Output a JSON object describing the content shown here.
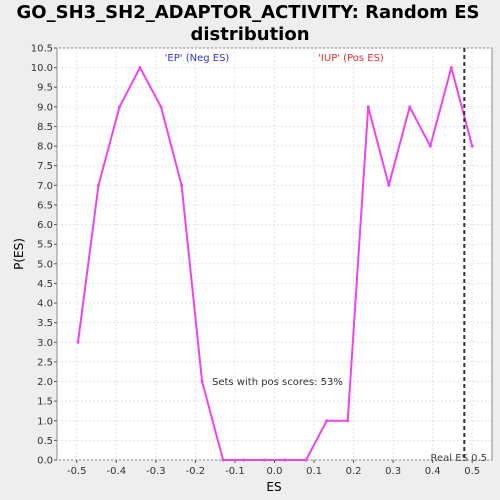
{
  "chart_data": {
    "type": "line",
    "title_line1": "GO_SH3_SH2_ADAPTOR_ACTIVITY: Random ES",
    "title_line2": "distribution",
    "xlabel": "ES",
    "ylabel": "P(ES)",
    "xlim": [
      -0.55,
      0.55
    ],
    "ylim": [
      0,
      10.5
    ],
    "x_ticks": [
      "-0.5",
      "-0.4",
      "-0.3",
      "-0.2",
      "-0.1",
      "0.0",
      "0.1",
      "0.2",
      "0.3",
      "0.4",
      "0.5"
    ],
    "y_ticks": [
      "0.0",
      "0.5",
      "1.0",
      "1.5",
      "2.0",
      "2.5",
      "3.0",
      "3.5",
      "4.0",
      "4.5",
      "5.0",
      "5.5",
      "6.0",
      "6.5",
      "7.0",
      "7.5",
      "8.0",
      "8.5",
      "9.0",
      "9.5",
      "10.0",
      "10.5"
    ],
    "grid": true,
    "series": [
      {
        "color": "#ee44ee",
        "x": [
          -0.497,
          -0.445,
          -0.392,
          -0.34,
          -0.287,
          -0.235,
          -0.183,
          -0.13,
          -0.078,
          -0.025,
          0.027,
          0.08,
          0.132,
          0.185,
          0.237,
          0.289,
          0.342,
          0.394,
          0.447,
          0.5
        ],
        "y": [
          3.0,
          7.0,
          9.0,
          10.0,
          9.0,
          7.0,
          2.0,
          0.0,
          0.0,
          0.0,
          0.0,
          0.0,
          1.0,
          1.0,
          9.0,
          7.0,
          9.0,
          8.0,
          10.0,
          8.0
        ]
      }
    ],
    "real_es": 0.48,
    "real_es_label": "Real ES 0.5",
    "ep_label": "'EP' (Neg ES)",
    "iup_label": "'IUP' (Pos ES)",
    "pos_scores_label": "Sets with pos scores: 53%",
    "colors": {
      "ep": "#3333cc",
      "iup": "#dd3333",
      "line": "#ee44ee",
      "real_es": "#333333"
    }
  }
}
